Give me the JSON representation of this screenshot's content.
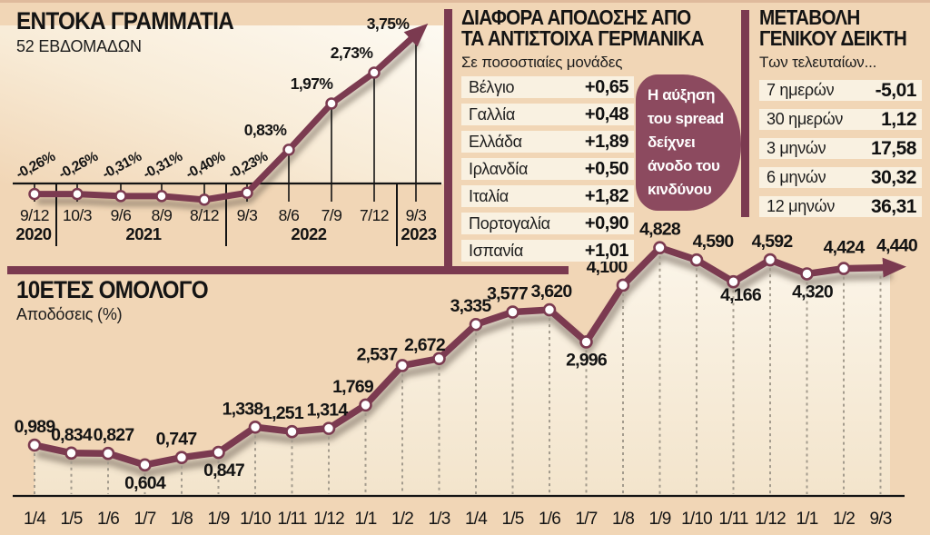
{
  "colors": {
    "background": "#f1d6b6",
    "line_maroon": "#7b3a50",
    "bubble_maroon": "#8c4a5f",
    "row_cream": "#f9f1e1",
    "plot_cream": "#fdf9f1",
    "text_black": "#141414",
    "dashed_gray": "#a39b8d"
  },
  "chart_data": [
    {
      "id": "tbill",
      "type": "line",
      "title": "ΕΝΤΟΚΑ ΓΡΑΜΜΑΤΙΑ",
      "subtitle": "52 ΕΒΔΟΜΑΔΩΝ",
      "x_labels": [
        "9/12",
        "10/3",
        "9/6",
        "8/9",
        "8/12",
        "9/3",
        "8/6",
        "7/9",
        "7/12",
        "9/3"
      ],
      "values": [
        -0.26,
        -0.26,
        -0.31,
        -0.31,
        -0.4,
        -0.23,
        0.83,
        1.97,
        2.73,
        3.75
      ],
      "point_labels": [
        "-0,26%",
        "-0,26%",
        "-0,31%",
        "-0,31%",
        "-0,40%",
        "-0,23%",
        "0,83%",
        "1,97%",
        "2,73%",
        "3,75%"
      ],
      "rotated_label_count": 6,
      "year_row": [
        {
          "label": "2020",
          "x": 37
        },
        {
          "label": "2021",
          "x": 158
        },
        {
          "label": "2022",
          "x": 340
        },
        {
          "label": "2023",
          "x": 461
        }
      ],
      "separators": [
        62,
        249,
        437
      ],
      "ylim": [
        -0.5,
        3.9
      ],
      "grid": false,
      "end_arrow": true
    },
    {
      "id": "bond",
      "type": "line",
      "title": "10ΕΤΕΣ ΟΜΟΛΟΓΟ",
      "subtitle": "Αποδόσεις (%)",
      "x_labels": [
        "1/4",
        "1/5",
        "1/6",
        "1/7",
        "1/8",
        "1/9",
        "1/10",
        "1/11",
        "1/12",
        "1/1",
        "1/2",
        "1/3",
        "1/4",
        "1/5",
        "1/6",
        "1/7",
        "1/8",
        "1/9",
        "1/10",
        "1/11",
        "1/12",
        "1/1",
        "1/2",
        "9/3"
      ],
      "values": [
        0.989,
        0.834,
        0.827,
        0.604,
        0.747,
        0.847,
        1.338,
        1.251,
        1.314,
        1.769,
        2.537,
        2.672,
        3.335,
        3.577,
        3.62,
        2.996,
        4.1,
        4.828,
        4.59,
        4.166,
        4.592,
        4.32,
        4.424,
        4.44
      ],
      "point_labels": [
        "0,989",
        "0,834",
        "0,827",
        "0,604",
        "0,747",
        "0,847",
        "1,338",
        "1,251",
        "1,314",
        "1,769",
        "2,537",
        "2,672",
        "3,335",
        "3,577",
        "3,620",
        "2,996",
        "4,100",
        "4,828",
        "4,590",
        "4,166",
        "4,592",
        "4,320",
        "4,424",
        "4,440"
      ],
      "label_pos": [
        "above",
        "above",
        "above",
        "below",
        "above",
        "below",
        "above",
        "above",
        "above",
        "above",
        "above",
        "above",
        "above",
        "above",
        "above",
        "below",
        "above",
        "above",
        "above",
        "below",
        "above",
        "below",
        "above",
        "above"
      ],
      "ylim": [
        0,
        5
      ],
      "grid": false,
      "end_arrow": true
    },
    {
      "id": "spread",
      "type": "table",
      "title_lines": [
        "ΔΙΑΦΟΡΑ ΑΠΟΔΟΣΗΣ ΑΠΟ",
        "ΤΑ ΑΝΤΙΣΤΟΙΧΑ ΓΕΡΜΑΝΙΚΑ"
      ],
      "subtitle": "Σε ποσοστιαίες μονάδες",
      "rows": [
        {
          "label": "Βέλγιο",
          "value": "+0,65"
        },
        {
          "label": "Γαλλία",
          "value": "+0,48"
        },
        {
          "label": "Ελλάδα",
          "value": "+1,89"
        },
        {
          "label": "Ιρλανδία",
          "value": "+0,50"
        },
        {
          "label": "Ιταλία",
          "value": "+1,82"
        },
        {
          "label": "Πορτογαλία",
          "value": "+0,90"
        },
        {
          "label": "Ισπανία",
          "value": "+1,01"
        }
      ],
      "note_lines": [
        "Η αύξηση",
        "του spread",
        "δείχνει",
        "άνοδο του",
        "κινδύνου"
      ]
    },
    {
      "id": "index",
      "type": "table",
      "title_lines": [
        "ΜΕΤΑΒΟΛΗ",
        "ΓΕΝΙΚΟΥ ΔΕΙΚΤΗ"
      ],
      "subtitle": "Των τελευταίων...",
      "rows": [
        {
          "label": "7 ημερών",
          "value": "-5,01"
        },
        {
          "label": "30 ημερών",
          "value": "1,12"
        },
        {
          "label": "3 μηνών",
          "value": "17,58"
        },
        {
          "label": "6 μηνών",
          "value": "30,32"
        },
        {
          "label": "12 μηνών",
          "value": "36,31"
        }
      ]
    }
  ]
}
